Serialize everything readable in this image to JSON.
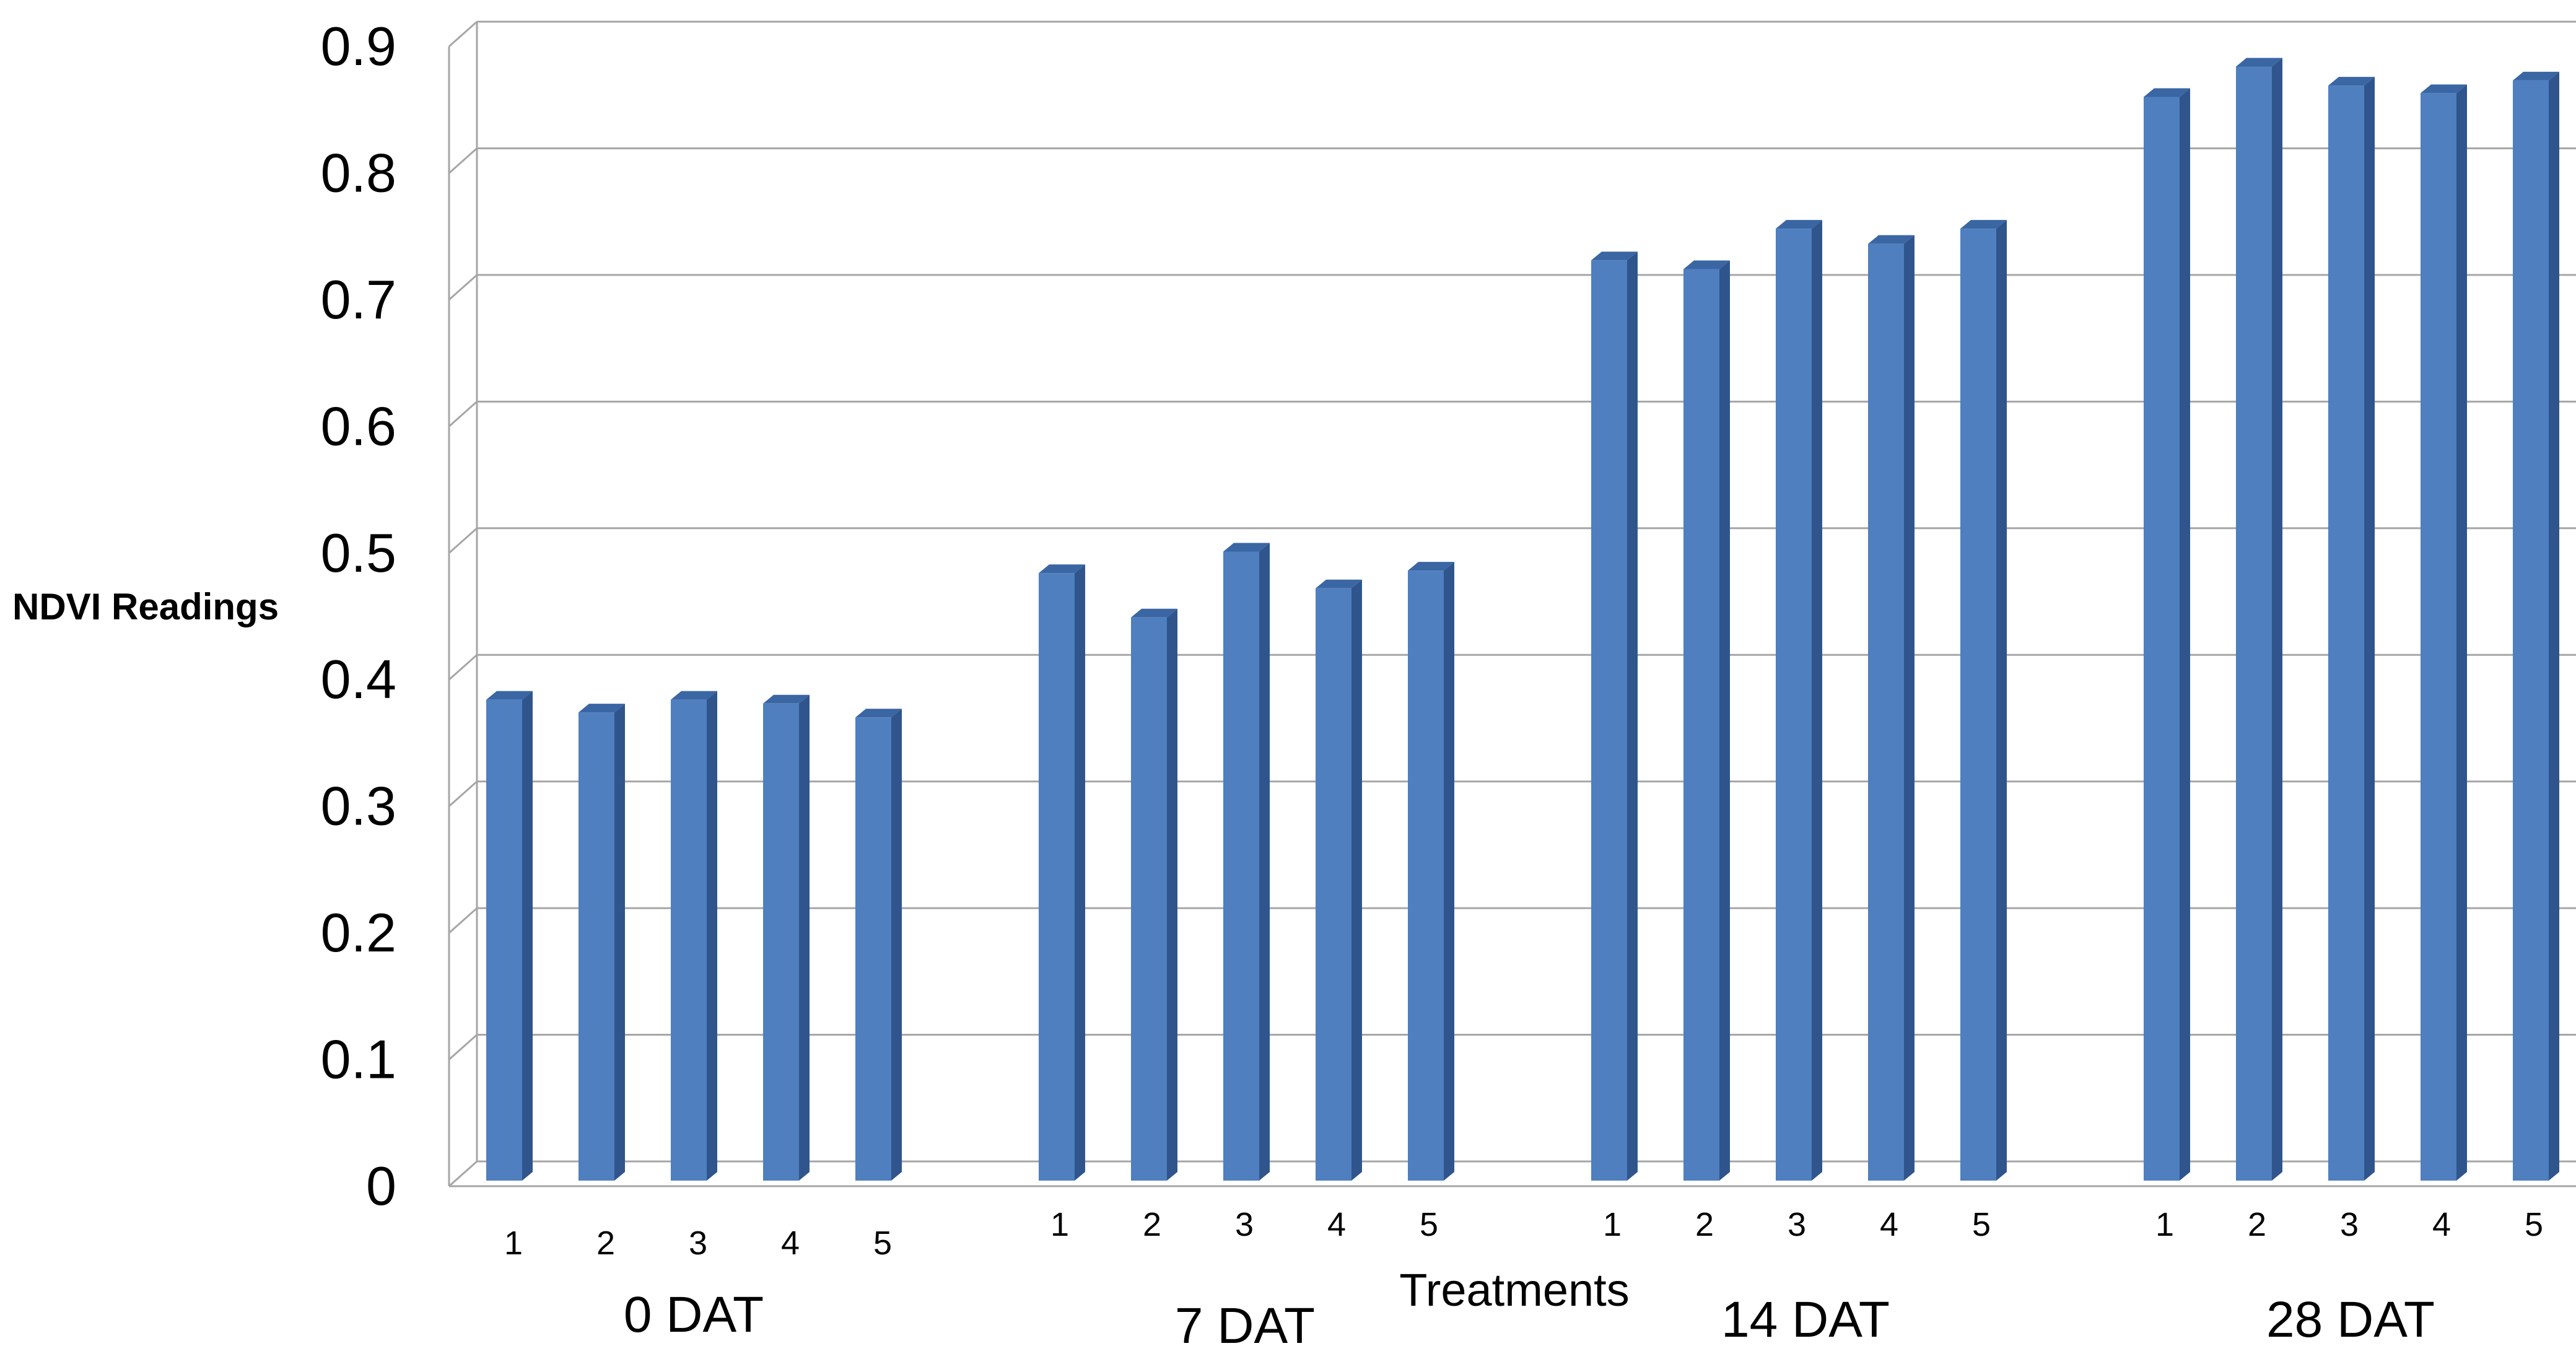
{
  "chart_data": {
    "type": "bar",
    "title": "",
    "xlabel": "Treatments",
    "ylabel": "NDVI Readings",
    "ylim": [
      0,
      0.9
    ],
    "yticks": [
      "0",
      "0.1",
      "0.2",
      "0.3",
      "0.4",
      "0.5",
      "0.6",
      "0.7",
      "0.8",
      "0.9"
    ],
    "grid": true,
    "three_d": true,
    "bar_color": "#4F7FBF",
    "bar_side_color": "#2F558C",
    "bar_top_color": "#3A66A3",
    "gridline_color": "#A6A6A6",
    "groups": [
      {
        "label": "0 DAT",
        "categories": [
          "1",
          "2",
          "3",
          "4",
          "5"
        ],
        "values": [
          0.39,
          0.38,
          0.39,
          0.387,
          0.376
        ]
      },
      {
        "label": "7 DAT",
        "categories": [
          "1",
          "2",
          "3",
          "4",
          "5"
        ],
        "values": [
          0.49,
          0.455,
          0.507,
          0.478,
          0.492
        ]
      },
      {
        "label": "14 DAT",
        "categories": [
          "1",
          "2",
          "3",
          "4",
          "5"
        ],
        "values": [
          0.737,
          0.73,
          0.762,
          0.75,
          0.762
        ]
      },
      {
        "label": "28 DAT",
        "categories": [
          "1",
          "2",
          "3",
          "4",
          "5"
        ],
        "values": [
          0.866,
          0.89,
          0.875,
          0.869,
          0.879
        ]
      }
    ]
  }
}
